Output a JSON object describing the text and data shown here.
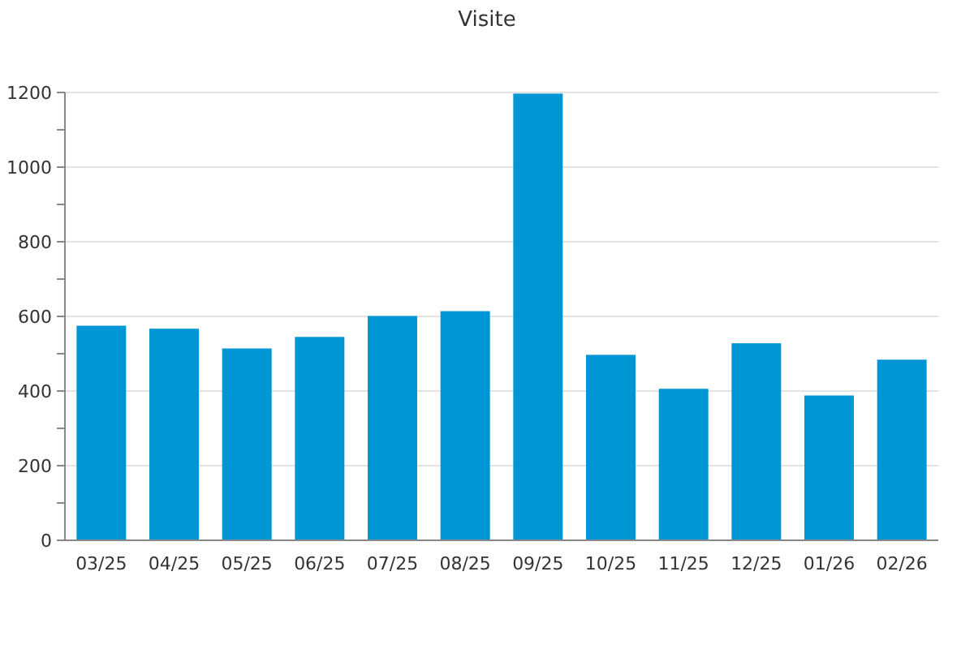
{
  "chart_data": {
    "type": "bar",
    "title": "Visite",
    "categories": [
      "03/25",
      "04/25",
      "05/25",
      "06/25",
      "07/25",
      "08/25",
      "09/25",
      "10/25",
      "11/25",
      "12/25",
      "01/26",
      "02/26"
    ],
    "values": [
      575,
      567,
      514,
      545,
      601,
      614,
      1197,
      497,
      406,
      528,
      388,
      484
    ],
    "color": "#0096d6",
    "ylim": [
      0,
      1200
    ],
    "yticks": [
      0,
      {
        "value": 100,
        "label": null
      },
      200,
      {
        "value": 300,
        "label": null
      },
      400,
      {
        "value": 500,
        "label": null
      },
      600,
      {
        "value": 700,
        "label": null
      },
      800,
      {
        "value": 900,
        "label": null
      },
      1000,
      {
        "value": 1100,
        "label": null
      },
      1200
    ],
    "grid": "y"
  }
}
